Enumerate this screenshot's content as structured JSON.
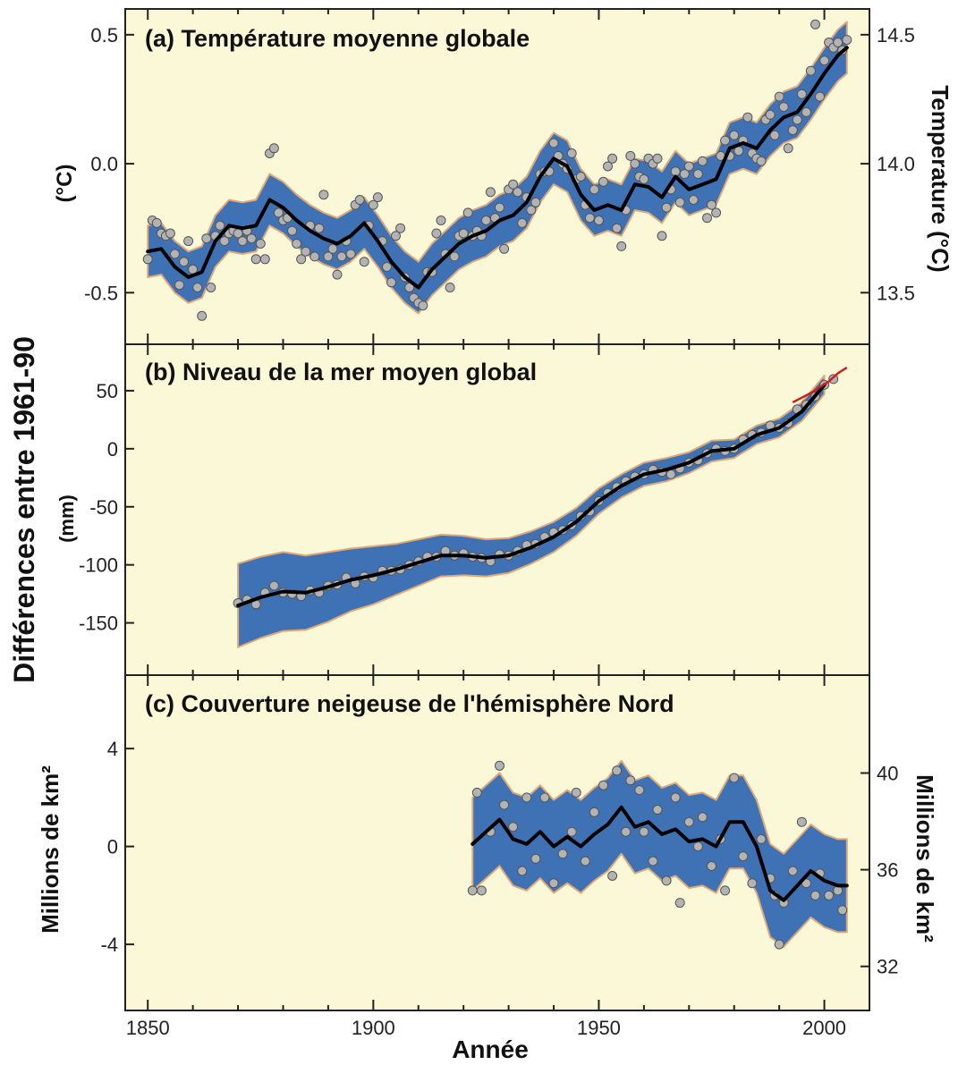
{
  "figure": {
    "shared_y_label": "Différences entre 1961-90",
    "x_label": "Année",
    "x_ticks": [
      1850,
      1900,
      1950,
      2000
    ],
    "x_range": [
      1845,
      2010
    ],
    "colors": {
      "panel_bg": "#fbf8d8",
      "band": "#3f72b5",
      "band_edge": "#e0a877",
      "smooth_line": "#000000",
      "point_fill": "#b3b3b3",
      "point_stroke": "#555555",
      "recent_line": "#d01c1c"
    }
  },
  "chart_data": [
    {
      "id": "a",
      "type": "scatter",
      "title": "(a) Température moyenne globale",
      "ylabel_left": "(°C)",
      "ylabel_right": "Temperature (°C)",
      "ylim": [
        -0.7,
        0.6
      ],
      "yticks_left": [
        {
          "value": 0.5,
          "label": "0.5"
        },
        {
          "value": 0.0,
          "label": "0.0"
        },
        {
          "value": -0.5,
          "label": "-0.5"
        }
      ],
      "yticks_right": [
        {
          "value": 0.5,
          "label": "14.5"
        },
        {
          "value": 0.0,
          "label": "14.0"
        },
        {
          "value": -0.5,
          "label": "13.5"
        }
      ],
      "smooth": {
        "x": [
          1850,
          1853,
          1856,
          1859,
          1862,
          1865,
          1868,
          1871,
          1874,
          1877,
          1880,
          1883,
          1886,
          1889,
          1892,
          1895,
          1898,
          1901,
          1904,
          1907,
          1910,
          1913,
          1916,
          1919,
          1922,
          1925,
          1928,
          1931,
          1934,
          1937,
          1940,
          1943,
          1946,
          1949,
          1952,
          1955,
          1958,
          1961,
          1964,
          1967,
          1970,
          1973,
          1976,
          1979,
          1982,
          1985,
          1988,
          1991,
          1994,
          1997,
          2000,
          2003,
          2005
        ],
        "y": [
          -0.34,
          -0.33,
          -0.4,
          -0.44,
          -0.42,
          -0.3,
          -0.24,
          -0.25,
          -0.24,
          -0.14,
          -0.17,
          -0.22,
          -0.26,
          -0.29,
          -0.31,
          -0.28,
          -0.23,
          -0.3,
          -0.38,
          -0.44,
          -0.48,
          -0.41,
          -0.36,
          -0.31,
          -0.28,
          -0.26,
          -0.22,
          -0.2,
          -0.15,
          -0.05,
          0.02,
          -0.01,
          -0.12,
          -0.18,
          -0.16,
          -0.18,
          -0.08,
          -0.09,
          -0.13,
          -0.05,
          -0.1,
          -0.08,
          -0.06,
          0.06,
          0.08,
          0.06,
          0.13,
          0.18,
          0.2,
          0.27,
          0.35,
          0.42,
          0.45
        ]
      },
      "band_halfwidth": 0.1,
      "points": {
        "x": [
          1850,
          1851,
          1852,
          1853,
          1854,
          1855,
          1856,
          1857,
          1858,
          1859,
          1860,
          1861,
          1862,
          1863,
          1864,
          1865,
          1866,
          1867,
          1868,
          1869,
          1870,
          1871,
          1872,
          1873,
          1874,
          1875,
          1876,
          1877,
          1878,
          1879,
          1880,
          1881,
          1882,
          1883,
          1884,
          1885,
          1886,
          1887,
          1888,
          1889,
          1890,
          1891,
          1892,
          1893,
          1894,
          1895,
          1896,
          1897,
          1898,
          1899,
          1900,
          1901,
          1902,
          1903,
          1904,
          1905,
          1906,
          1907,
          1908,
          1909,
          1910,
          1911,
          1912,
          1913,
          1914,
          1915,
          1916,
          1917,
          1918,
          1919,
          1920,
          1921,
          1922,
          1923,
          1924,
          1925,
          1926,
          1927,
          1928,
          1929,
          1930,
          1931,
          1932,
          1933,
          1934,
          1935,
          1936,
          1937,
          1938,
          1939,
          1940,
          1941,
          1942,
          1943,
          1944,
          1945,
          1946,
          1947,
          1948,
          1949,
          1950,
          1951,
          1952,
          1953,
          1954,
          1955,
          1956,
          1957,
          1958,
          1959,
          1960,
          1961,
          1962,
          1963,
          1964,
          1965,
          1966,
          1967,
          1968,
          1969,
          1970,
          1971,
          1972,
          1973,
          1974,
          1975,
          1976,
          1977,
          1978,
          1979,
          1980,
          1981,
          1982,
          1983,
          1984,
          1985,
          1986,
          1987,
          1988,
          1989,
          1990,
          1991,
          1992,
          1993,
          1994,
          1995,
          1996,
          1997,
          1998,
          1999,
          2000,
          2001,
          2002,
          2003,
          2004,
          2005
        ],
        "y": [
          -0.37,
          -0.22,
          -0.23,
          -0.27,
          -0.28,
          -0.27,
          -0.35,
          -0.47,
          -0.38,
          -0.3,
          -0.41,
          -0.48,
          -0.59,
          -0.29,
          -0.48,
          -0.28,
          -0.24,
          -0.3,
          -0.27,
          -0.26,
          -0.27,
          -0.3,
          -0.26,
          -0.29,
          -0.37,
          -0.31,
          -0.37,
          0.04,
          0.06,
          -0.19,
          -0.22,
          -0.21,
          -0.26,
          -0.31,
          -0.37,
          -0.34,
          -0.24,
          -0.36,
          -0.25,
          -0.12,
          -0.36,
          -0.33,
          -0.43,
          -0.36,
          -0.3,
          -0.35,
          -0.16,
          -0.14,
          -0.38,
          -0.24,
          -0.16,
          -0.13,
          -0.3,
          -0.4,
          -0.46,
          -0.28,
          -0.25,
          -0.44,
          -0.48,
          -0.52,
          -0.54,
          -0.55,
          -0.42,
          -0.42,
          -0.27,
          -0.22,
          -0.35,
          -0.48,
          -0.36,
          -0.28,
          -0.27,
          -0.19,
          -0.28,
          -0.26,
          -0.28,
          -0.22,
          -0.11,
          -0.21,
          -0.17,
          -0.33,
          -0.1,
          -0.08,
          -0.11,
          -0.23,
          -0.13,
          -0.18,
          -0.15,
          -0.04,
          -0.03,
          -0.03,
          0.08,
          0.03,
          0.0,
          -0.02,
          0.04,
          -0.06,
          -0.05,
          -0.16,
          -0.21,
          -0.1,
          -0.22,
          -0.07,
          -0.01,
          0.02,
          -0.25,
          -0.32,
          -0.18,
          0.03,
          0.0,
          -0.05,
          -0.06,
          0.02,
          0.0,
          0.02,
          -0.28,
          -0.17,
          -0.1,
          -0.03,
          -0.15,
          -0.04,
          -0.01,
          -0.14,
          -0.04,
          0.01,
          -0.21,
          -0.16,
          -0.19,
          0.03,
          0.09,
          0.03,
          0.11,
          0.05,
          0.09,
          0.18,
          0.04,
          0.02,
          0.01,
          0.17,
          0.19,
          0.11,
          0.26,
          0.22,
          0.06,
          0.13,
          0.17,
          0.27,
          0.2,
          0.36,
          0.54,
          0.26,
          0.4,
          0.47,
          0.45,
          0.47,
          0.44,
          0.48
        ]
      }
    },
    {
      "id": "b",
      "type": "scatter",
      "title": "(b) Niveau de la mer moyen global",
      "ylabel_left": "(mm)",
      "ylim": [
        -195,
        90
      ],
      "yticks_left": [
        {
          "value": 50,
          "label": "50"
        },
        {
          "value": 0,
          "label": "0"
        },
        {
          "value": -50,
          "label": "-50"
        },
        {
          "value": -100,
          "label": "-100"
        },
        {
          "value": -150,
          "label": "-150"
        }
      ],
      "smooth": {
        "x": [
          1870,
          1875,
          1880,
          1885,
          1890,
          1895,
          1900,
          1905,
          1910,
          1915,
          1920,
          1925,
          1930,
          1935,
          1940,
          1945,
          1950,
          1955,
          1960,
          1965,
          1970,
          1975,
          1980,
          1985,
          1990,
          1995,
          2000
        ],
        "y": [
          -135,
          -128,
          -123,
          -124,
          -119,
          -113,
          -109,
          -104,
          -98,
          -92,
          -92,
          -94,
          -92,
          -85,
          -76,
          -63,
          -45,
          -32,
          -22,
          -18,
          -12,
          -2,
          0,
          12,
          18,
          32,
          55
        ]
      },
      "band_halfwidth": [
        36,
        35,
        34,
        32,
        30,
        27,
        25,
        22,
        20,
        18,
        17,
        16,
        15,
        14,
        13,
        12,
        11,
        10,
        10,
        10,
        9,
        9,
        8,
        8,
        8,
        8,
        8
      ],
      "recent_series": {
        "x": [
          1993,
          1995,
          1997,
          1999,
          2001,
          2003,
          2005
        ],
        "y": [
          40,
          44,
          48,
          53,
          58,
          65,
          70
        ]
      },
      "points": {
        "x": [
          1870,
          1872,
          1874,
          1876,
          1878,
          1880,
          1882,
          1884,
          1886,
          1888,
          1890,
          1892,
          1894,
          1896,
          1898,
          1900,
          1902,
          1904,
          1906,
          1908,
          1910,
          1912,
          1914,
          1916,
          1918,
          1920,
          1922,
          1924,
          1926,
          1928,
          1930,
          1932,
          1934,
          1936,
          1938,
          1940,
          1942,
          1944,
          1946,
          1948,
          1950,
          1952,
          1954,
          1956,
          1958,
          1960,
          1962,
          1964,
          1966,
          1968,
          1970,
          1972,
          1974,
          1976,
          1978,
          1980,
          1982,
          1984,
          1986,
          1988,
          1990,
          1992,
          1994,
          1996,
          1998,
          2000,
          2002
        ],
        "y": [
          -133,
          -130,
          -134,
          -124,
          -118,
          -124,
          -125,
          -127,
          -122,
          -124,
          -118,
          -117,
          -111,
          -116,
          -110,
          -111,
          -105,
          -105,
          -104,
          -100,
          -97,
          -93,
          -93,
          -88,
          -92,
          -90,
          -93,
          -94,
          -97,
          -91,
          -92,
          -88,
          -83,
          -82,
          -76,
          -72,
          -70,
          -66,
          -58,
          -54,
          -45,
          -38,
          -33,
          -28,
          -24,
          -22,
          -18,
          -20,
          -22,
          -17,
          -12,
          -10,
          -4,
          0,
          -2,
          0,
          8,
          12,
          14,
          20,
          18,
          22,
          34,
          38,
          45,
          55,
          60
        ]
      }
    },
    {
      "id": "c",
      "type": "scatter",
      "title": "(c) Couverture neigeuse de l'hémisphère Nord",
      "ylabel_left": "Millions de km²",
      "ylabel_right": "Millions de km²",
      "ylim": [
        -6.7,
        7.0
      ],
      "yticks_left": [
        {
          "value": 4,
          "label": "4"
        },
        {
          "value": 0,
          "label": "0"
        },
        {
          "value": -4,
          "label": "-4"
        }
      ],
      "yticks_right": [
        {
          "value": 3.0,
          "label": "40"
        },
        {
          "value": -0.95,
          "label": "36"
        },
        {
          "value": -4.9,
          "label": "32"
        }
      ],
      "smooth": {
        "x": [
          1922,
          1925,
          1928,
          1931,
          1934,
          1937,
          1940,
          1943,
          1946,
          1949,
          1952,
          1955,
          1958,
          1961,
          1964,
          1967,
          1970,
          1973,
          1976,
          1979,
          1982,
          1985,
          1988,
          1991,
          1994,
          1997,
          2000,
          2003,
          2005
        ],
        "y": [
          0.1,
          0.6,
          1.1,
          0.3,
          0.1,
          0.6,
          0.0,
          0.4,
          0.0,
          0.5,
          0.9,
          1.6,
          0.8,
          1.0,
          0.5,
          0.7,
          0.2,
          0.3,
          0.0,
          1.0,
          1.0,
          0.0,
          -1.8,
          -2.2,
          -1.6,
          -1.0,
          -1.4,
          -1.6,
          -1.6
        ]
      },
      "band_halfwidth": 1.9,
      "points": {
        "x": [
          1922,
          1923,
          1924,
          1926,
          1928,
          1929,
          1931,
          1933,
          1934,
          1936,
          1938,
          1940,
          1942,
          1944,
          1945,
          1947,
          1949,
          1951,
          1953,
          1954,
          1956,
          1957,
          1959,
          1960,
          1962,
          1963,
          1965,
          1967,
          1968,
          1970,
          1972,
          1973,
          1975,
          1977,
          1978,
          1980,
          1982,
          1984,
          1986,
          1988,
          1989,
          1990,
          1991,
          1993,
          1995,
          1996,
          1998,
          1999,
          2001,
          2003,
          2004
        ],
        "y": [
          -1.8,
          2.2,
          -1.8,
          0.6,
          3.3,
          1.7,
          0.8,
          -1.0,
          2.0,
          -0.5,
          2.0,
          -1.5,
          -0.3,
          0.6,
          2.2,
          -0.6,
          1.4,
          2.5,
          -1.2,
          3.1,
          0.6,
          2.7,
          2.3,
          0.6,
          -0.6,
          1.5,
          -1.4,
          2.0,
          -2.3,
          1.0,
          0.0,
          1.2,
          -0.8,
          0.3,
          -1.8,
          2.8,
          -0.4,
          -1.5,
          0.3,
          -1.3,
          -2.0,
          -4.0,
          -2.3,
          -1.0,
          1.0,
          -1.5,
          -2.0,
          -1.1,
          -2.0,
          -1.8,
          -2.6
        ]
      }
    }
  ]
}
